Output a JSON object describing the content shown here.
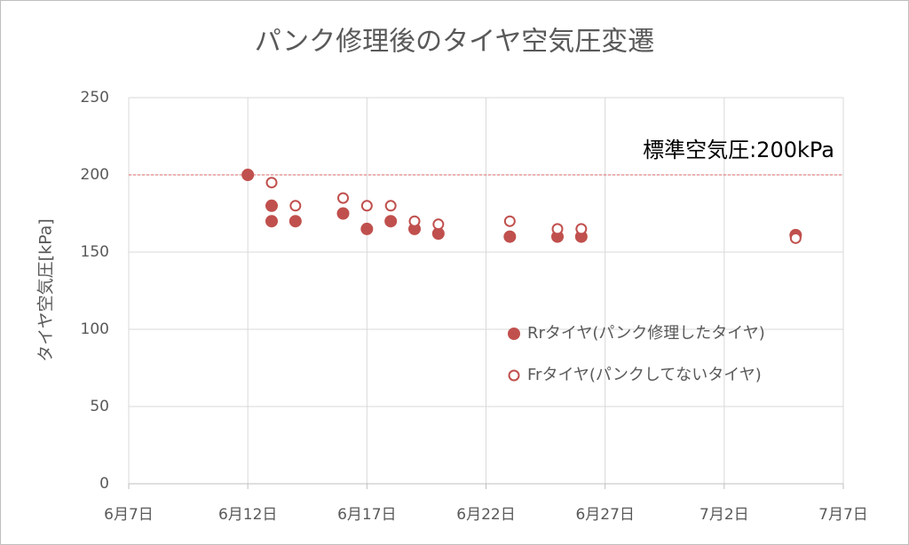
{
  "chart_data": {
    "type": "scatter",
    "title": "パンク修理後のタイヤ空気圧変遷",
    "y_label": "タイヤ空気圧[kPa]",
    "xlim": [
      "06-07",
      "07-07"
    ],
    "xticks": [
      {
        "value": "06-07",
        "label": "6月7日"
      },
      {
        "value": "06-12",
        "label": "6月12日"
      },
      {
        "value": "06-17",
        "label": "6月17日"
      },
      {
        "value": "06-22",
        "label": "6月22日"
      },
      {
        "value": "06-27",
        "label": "6月27日"
      },
      {
        "value": "07-02",
        "label": "7月2日"
      },
      {
        "value": "07-07",
        "label": "7月7日"
      }
    ],
    "ylim": [
      0,
      250
    ],
    "yticks": [
      0,
      50,
      100,
      150,
      200,
      250
    ],
    "grid": true,
    "legend": "right",
    "reference_line": {
      "value": 200,
      "label": "標準空気圧:200kPa",
      "color": "#e06666"
    },
    "series": [
      {
        "name": "Rrタイヤ(パンク修理したタイヤ)",
        "color": "#c0504d",
        "filled": true,
        "x": [
          "06-12",
          "06-13",
          "06-13",
          "06-14",
          "06-16",
          "06-17",
          "06-18",
          "06-19",
          "06-20",
          "06-23",
          "06-25",
          "06-26",
          "07-05"
        ],
        "values": [
          200,
          180,
          170,
          170,
          175,
          165,
          170,
          165,
          162,
          160,
          160,
          160,
          161
        ]
      },
      {
        "name": "Frタイヤ(パンクしてないタイヤ)",
        "color": "#c0504d",
        "filled": false,
        "x": [
          "06-13",
          "06-14",
          "06-16",
          "06-17",
          "06-18",
          "06-19",
          "06-20",
          "06-23",
          "06-25",
          "06-26",
          "07-05"
        ],
        "values": [
          195,
          180,
          185,
          180,
          180,
          170,
          168,
          170,
          165,
          165,
          159
        ]
      }
    ]
  }
}
